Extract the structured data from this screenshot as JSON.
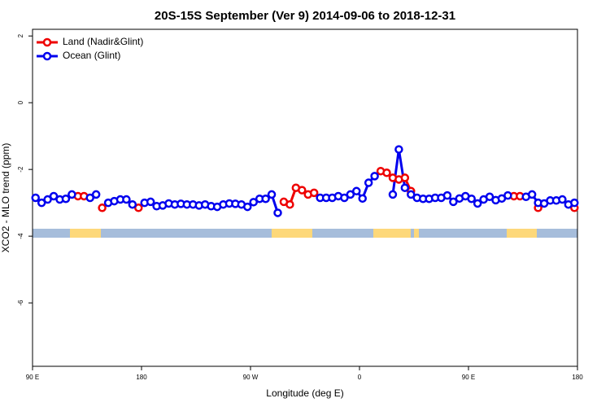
{
  "chart_data": {
    "type": "line",
    "title": "20S-15S September (Ver 9)   2014-09-06 to 2018-12-31",
    "x_label": "Longitude (deg E)",
    "y_label": "XCO2 - MLO trend (ppm)",
    "x": [
      92.5,
      97.5,
      102.5,
      107.5,
      112.5,
      117.5,
      122.5,
      127.5,
      132.5,
      137.5,
      142.5,
      147.5,
      152.5,
      157.5,
      162.5,
      167.5,
      172.5,
      177.5,
      182.5,
      187.5,
      192.5,
      197.5,
      202.5,
      207.5,
      212.5,
      217.5,
      222.5,
      227.5,
      232.5,
      237.5,
      242.5,
      247.5,
      252.5,
      257.5,
      262.5,
      267.5,
      272.5,
      277.5,
      282.5,
      287.5,
      292.5,
      297.5,
      302.5,
      307.5,
      312.5,
      317.5,
      322.5,
      327.5,
      332.5,
      337.5,
      342.5,
      347.5,
      352.5,
      357.5,
      362.5,
      367.5,
      372.5,
      377.5,
      382.5,
      387.5,
      392.5,
      397.5,
      402.5,
      407.5,
      412.5,
      417.5,
      422.5,
      427.5,
      432.5,
      437.5,
      442.5,
      447.5,
      452.5,
      457.5,
      462.5,
      467.5,
      472.5,
      477.5,
      482.5,
      487.5,
      492.5,
      497.5,
      502.5,
      507.5,
      512.5,
      517.5,
      522.5,
      527.5,
      532.5,
      537.5
    ],
    "series": [
      {
        "name": "Land (Nadir&Glint)",
        "color": "#ee0000",
        "values": [
          null,
          null,
          null,
          null,
          null,
          null,
          null,
          -2.8,
          -2.8,
          null,
          null,
          -3.15,
          null,
          null,
          null,
          null,
          null,
          -3.15,
          null,
          null,
          null,
          null,
          null,
          null,
          null,
          null,
          null,
          null,
          null,
          null,
          null,
          null,
          null,
          null,
          null,
          null,
          null,
          null,
          null,
          null,
          null,
          -2.97,
          -3.05,
          -2.55,
          -2.62,
          -2.75,
          -2.7,
          null,
          null,
          null,
          null,
          null,
          null,
          null,
          null,
          null,
          null,
          -2.05,
          -2.1,
          -2.25,
          -2.3,
          -2.25,
          -2.65,
          null,
          null,
          null,
          null,
          null,
          null,
          null,
          null,
          null,
          null,
          null,
          null,
          null,
          null,
          null,
          null,
          -2.8,
          -2.8,
          null,
          null,
          -3.15,
          null,
          null,
          null,
          null,
          null,
          -3.15
        ]
      },
      {
        "name": "Ocean (Glint)",
        "color": "#0000ee",
        "values": [
          -2.85,
          -3.0,
          -2.9,
          -2.8,
          -2.9,
          -2.88,
          -2.75,
          null,
          null,
          -2.85,
          -2.75,
          null,
          -3.0,
          -2.95,
          -2.9,
          -2.9,
          -3.05,
          null,
          -3.0,
          -2.97,
          -3.1,
          -3.08,
          -3.02,
          -3.05,
          -3.03,
          -3.05,
          -3.05,
          -3.08,
          -3.05,
          -3.1,
          -3.12,
          -3.05,
          -3.02,
          -3.03,
          -3.05,
          -3.12,
          -2.98,
          -2.88,
          -2.88,
          -2.75,
          -3.3,
          null,
          null,
          null,
          null,
          null,
          null,
          -2.85,
          -2.85,
          -2.85,
          -2.8,
          -2.85,
          -2.75,
          -2.65,
          -2.87,
          -2.4,
          -2.2,
          null,
          null,
          -2.75,
          -1.4,
          -2.55,
          -2.75,
          -2.85,
          -2.88,
          -2.88,
          -2.85,
          -2.85,
          -2.78,
          -2.97,
          -2.87,
          -2.8,
          -2.88,
          -3.02,
          -2.9,
          -2.82,
          -2.92,
          -2.87,
          -2.78,
          null,
          null,
          -2.82,
          -2.75,
          -3.0,
          -3.02,
          -2.93,
          -2.93,
          -2.9,
          -3.05,
          -3.0
        ]
      }
    ],
    "xlim": [
      90,
      540
    ],
    "xticks": [
      {
        "value": 90,
        "label": "90 E"
      },
      180,
      {
        "value": 270,
        "label": "90 W"
      },
      {
        "value": 360,
        "label": "0"
      },
      {
        "value": 450,
        "label": "90 E"
      },
      {
        "value": 540,
        "label": "180"
      }
    ],
    "ylim": [
      -7.9,
      2.2
    ],
    "yticks": [
      2,
      0,
      -2,
      -4,
      -6
    ],
    "legend": "top-left"
  }
}
